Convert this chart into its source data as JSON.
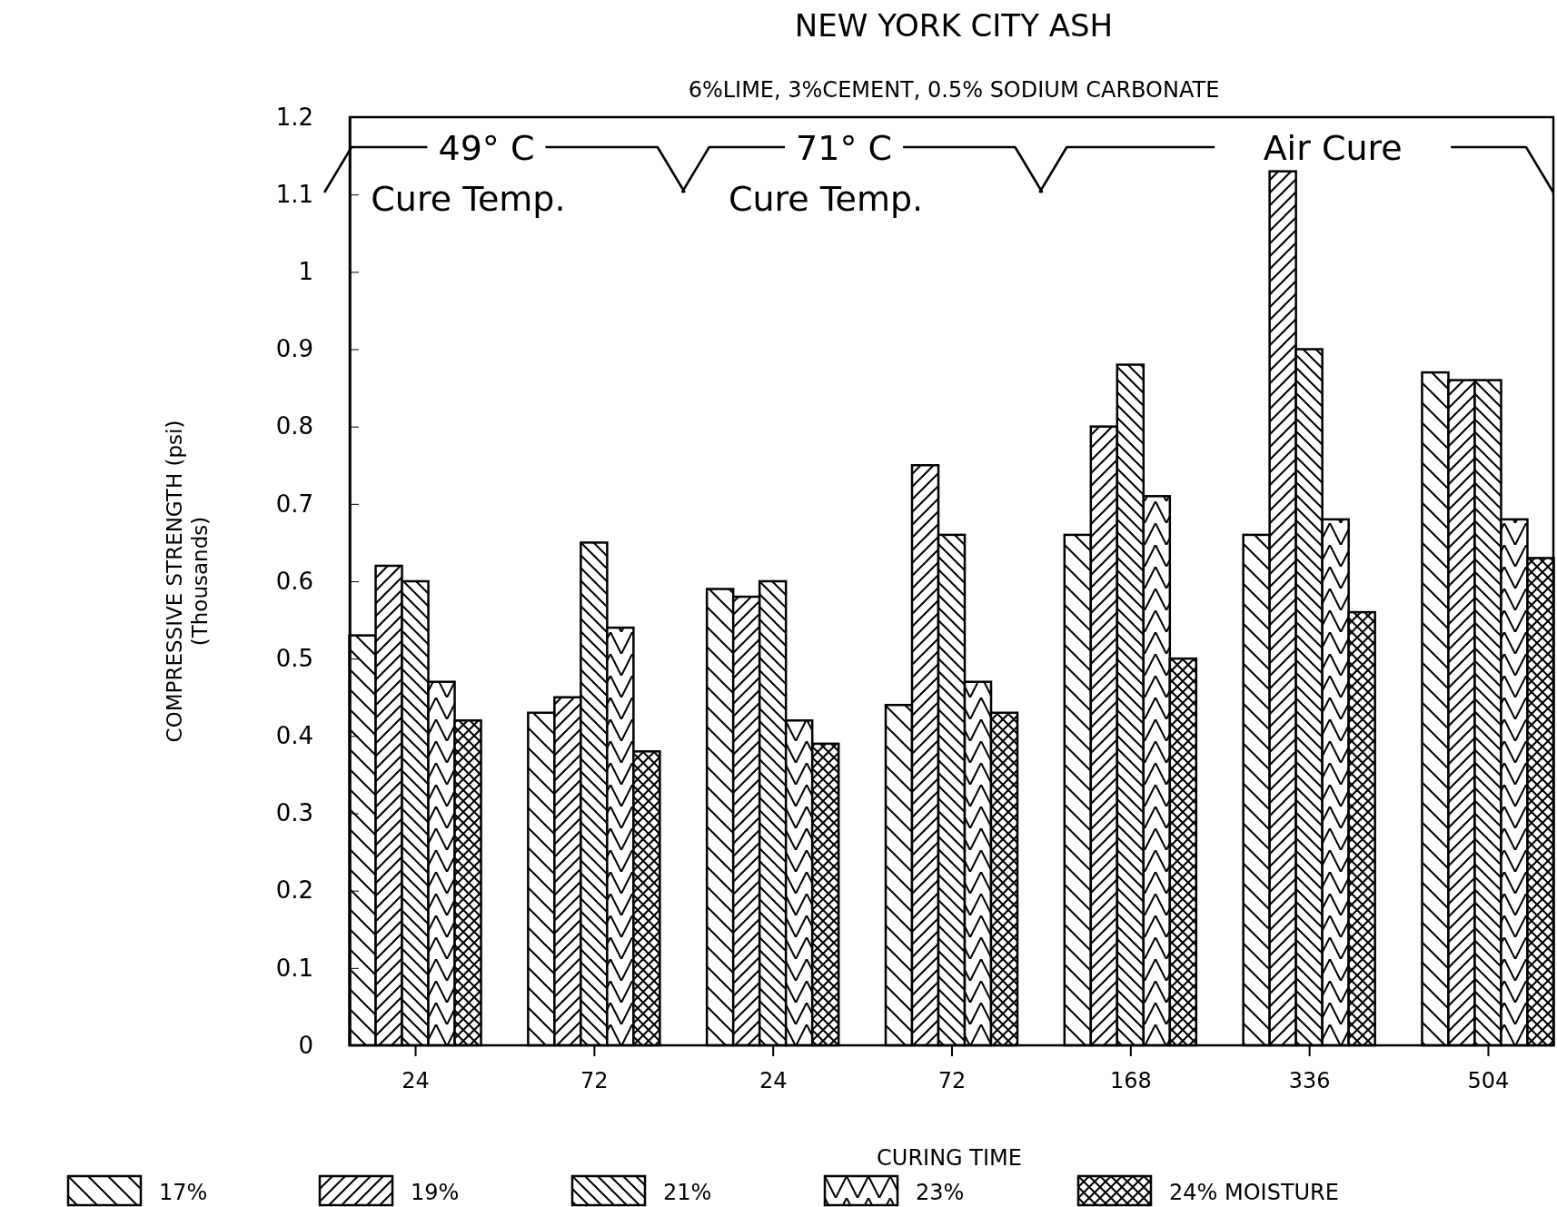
{
  "chart_data": {
    "type": "bar",
    "title": "NEW YORK CITY ASH",
    "subtitle": "6%LIME, 3%CEMENT, 0.5% SODIUM CARBONATE",
    "xlabel": "CURING TIME",
    "ylabel": "COMPRESSIVE STRENGTH (psi)\n(Thousands)",
    "categories": [
      "24",
      "72",
      "24",
      "72",
      "168",
      "336",
      "504"
    ],
    "series": [
      {
        "name": "17%",
        "color": "#000000",
        "values": [
          0.53,
          0.43,
          0.59,
          0.44,
          0.66,
          0.66,
          0.87
        ]
      },
      {
        "name": "19%",
        "color": "#000000",
        "values": [
          0.62,
          0.45,
          0.58,
          0.75,
          0.8,
          1.13,
          0.86
        ]
      },
      {
        "name": "21%",
        "color": "#000000",
        "values": [
          0.6,
          0.65,
          0.6,
          0.66,
          0.88,
          0.9,
          0.86
        ]
      },
      {
        "name": "23%",
        "color": "#000000",
        "values": [
          0.47,
          0.54,
          0.42,
          0.47,
          0.71,
          0.68,
          0.68
        ]
      },
      {
        "name": "24% MOISTURE",
        "color": "#000000",
        "values": [
          0.42,
          0.38,
          0.39,
          0.43,
          0.5,
          0.56,
          0.63
        ]
      }
    ],
    "ylim": [
      0,
      1.2
    ],
    "yticks": [
      0,
      0.1,
      0.2,
      0.3,
      0.4,
      0.5,
      0.6,
      0.7,
      0.8,
      0.9,
      1,
      1.1,
      1.2
    ],
    "legend": "bottom",
    "annotations": [
      "49° C",
      "Cure Temp.",
      "71° C",
      "Cure Temp.",
      "Air Cure"
    ]
  }
}
